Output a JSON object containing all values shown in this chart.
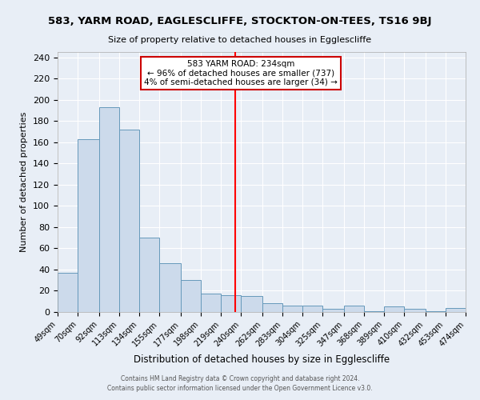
{
  "title1": "583, YARM ROAD, EAGLESCLIFFE, STOCKTON-ON-TEES, TS16 9BJ",
  "title2": "Size of property relative to detached houses in Egglescliffe",
  "xlabel": "Distribution of detached houses by size in Egglescliffe",
  "ylabel": "Number of detached properties",
  "bin_edges": [
    49,
    70,
    92,
    113,
    134,
    155,
    177,
    198,
    219,
    240,
    262,
    283,
    304,
    325,
    347,
    368,
    389,
    410,
    432,
    453,
    474
  ],
  "bin_labels": [
    "49sqm",
    "70sqm",
    "92sqm",
    "113sqm",
    "134sqm",
    "155sqm",
    "177sqm",
    "198sqm",
    "219sqm",
    "240sqm",
    "262sqm",
    "283sqm",
    "304sqm",
    "325sqm",
    "347sqm",
    "368sqm",
    "389sqm",
    "410sqm",
    "432sqm",
    "453sqm",
    "474sqm"
  ],
  "counts": [
    37,
    163,
    193,
    172,
    70,
    46,
    30,
    17,
    16,
    15,
    8,
    6,
    6,
    3,
    6,
    1,
    5,
    3,
    1,
    4
  ],
  "bar_color": "#ccdaeb",
  "bar_edge_color": "#6699bb",
  "vline_x": 234,
  "vline_color": "red",
  "annotation_title": "583 YARM ROAD: 234sqm",
  "annotation_line1": "← 96% of detached houses are smaller (737)",
  "annotation_line2": "4% of semi-detached houses are larger (34) →",
  "ylim": [
    0,
    245
  ],
  "yticks": [
    0,
    20,
    40,
    60,
    80,
    100,
    120,
    140,
    160,
    180,
    200,
    220,
    240
  ],
  "bg_color": "#e8eef6",
  "fig_bg_color": "#e8eef6",
  "footer1": "Contains HM Land Registry data © Crown copyright and database right 2024.",
  "footer2": "Contains public sector information licensed under the Open Government Licence v3.0."
}
